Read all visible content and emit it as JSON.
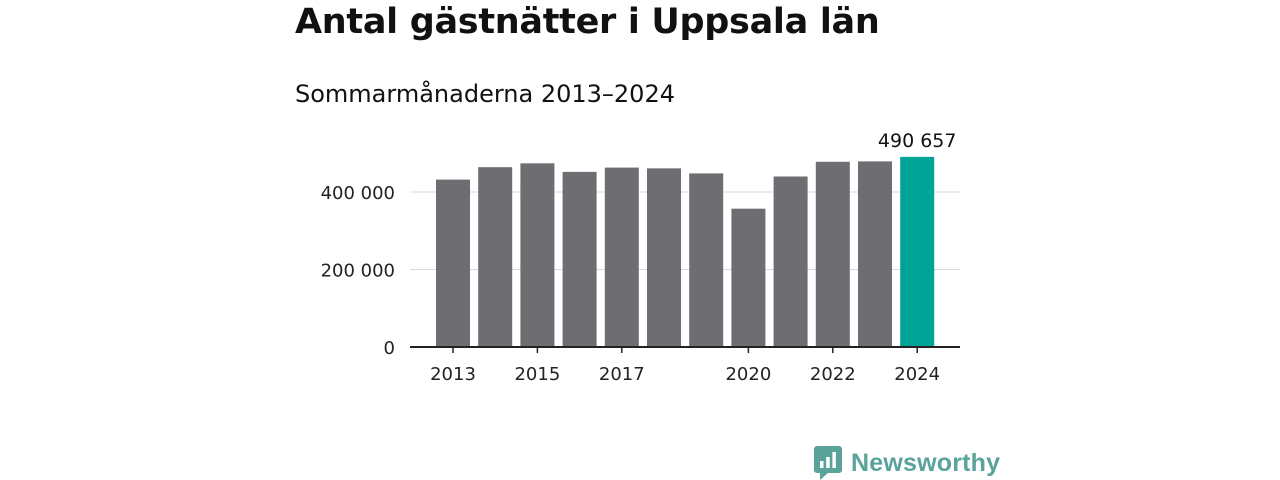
{
  "chart_data": {
    "type": "bar",
    "title": "Antal gästnätter i Uppsala län",
    "subtitle": "Sommarmånaderna 2013–2024",
    "categories": [
      "2013",
      "2014",
      "2015",
      "2016",
      "2017",
      "2018",
      "2019",
      "2020",
      "2021",
      "2022",
      "2023",
      "2024"
    ],
    "values": [
      432000,
      464000,
      474000,
      452000,
      463000,
      461000,
      448000,
      357000,
      440000,
      478000,
      479000,
      490657
    ],
    "x_tick_labels": [
      "2013",
      "2015",
      "2017",
      "2020",
      "2022",
      "2024"
    ],
    "y_ticks": [
      0,
      200000,
      400000
    ],
    "y_tick_labels": [
      "0",
      "200 000",
      "400 000"
    ],
    "ylim": [
      0,
      500000
    ],
    "xlabel": "",
    "ylabel": "",
    "grid": true,
    "highlight_index": 11,
    "highlight_label": "490 657",
    "colors": {
      "bar": "#6e6d72",
      "highlight": "#00a497",
      "grid": "#d9d9d9",
      "axis": "#222222"
    }
  },
  "brand": {
    "name": "Newsworthy",
    "icon": "newsworthy-chart-bubble-icon",
    "color": "#5aa39b"
  }
}
